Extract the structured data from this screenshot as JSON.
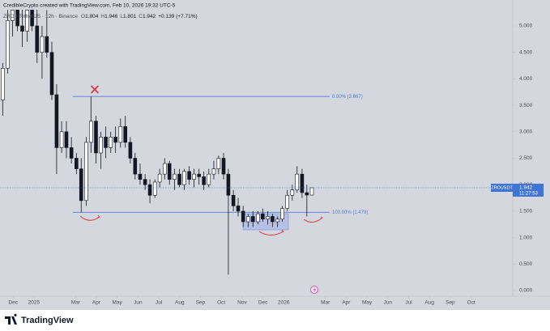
{
  "chart_data": {
    "type": "candlestick",
    "title": "CredibleCrypto created with TradingView.com, Feb 10, 2026 19:32 UTC-5",
    "symbol_info": "ZRO / TetherUS · 12h · Binance",
    "ohlc_letters": [
      "O",
      "H",
      "L",
      "C"
    ],
    "change_label": "+0.139 (+7.71%)",
    "color": "#131722",
    "x": [
      -0.5,
      -0.26,
      -0.03,
      0.21,
      0.44,
      0.68,
      0.91,
      1.15,
      1.39,
      1.62,
      1.86,
      2.09,
      2.33,
      2.56,
      2.8,
      3.04,
      3.27,
      3.51,
      3.74,
      3.98,
      4.21,
      4.45,
      4.69,
      4.92,
      5.16,
      5.39,
      5.63,
      5.86,
      6.1,
      6.34,
      6.57,
      6.81,
      7.04,
      7.28,
      7.51,
      7.75,
      7.99,
      8.22,
      8.46,
      8.69,
      8.93,
      9.16,
      9.4,
      9.64,
      9.87,
      10.11,
      10.34,
      10.58,
      10.81,
      11.05,
      11.29,
      11.52,
      11.76,
      11.99,
      12.23,
      12.46,
      12.7,
      12.93,
      13.17,
      13.41,
      13.64,
      13.88,
      14.11,
      14.35
    ],
    "open": [
      3.6,
      4.2,
      5.1,
      5.3,
      5.0,
      4.9,
      5.3,
      5.0,
      4.5,
      4.8,
      4.5,
      3.7,
      2.7,
      3.0,
      2.7,
      2.5,
      2.3,
      1.7,
      2.8,
      3.2,
      2.6,
      2.9,
      2.7,
      2.9,
      2.8,
      3.1,
      2.8,
      2.5,
      2.2,
      2.1,
      2.0,
      1.8,
      2.05,
      2.2,
      2.4,
      2.1,
      2.2,
      2.0,
      2.25,
      2.1,
      2.2,
      2.15,
      2.0,
      2.2,
      2.3,
      2.5,
      2.2,
      1.8,
      1.6,
      1.5,
      1.3,
      1.4,
      1.3,
      1.45,
      1.35,
      1.4,
      1.3,
      1.35,
      1.55,
      1.8,
      1.9,
      2.2,
      1.85,
      1.804
    ],
    "high": [
      4.3,
      5.3,
      5.6,
      5.7,
      5.4,
      5.5,
      5.6,
      5.4,
      5.0,
      5.3,
      4.7,
      3.9,
      3.2,
      3.2,
      2.9,
      2.6,
      2.5,
      2.9,
      3.667,
      3.3,
      3.0,
      3.1,
      3.0,
      3.1,
      3.25,
      3.3,
      2.9,
      2.6,
      2.4,
      2.2,
      2.1,
      2.1,
      2.3,
      2.5,
      2.45,
      2.3,
      2.3,
      2.3,
      2.35,
      2.3,
      2.3,
      2.25,
      2.3,
      2.45,
      2.55,
      2.6,
      2.3,
      1.9,
      1.75,
      1.6,
      1.45,
      1.5,
      1.5,
      1.55,
      1.5,
      1.45,
      1.4,
      1.6,
      1.9,
      2.0,
      2.35,
      2.3,
      2.0,
      1.946
    ],
    "low": [
      3.3,
      4.1,
      4.8,
      4.9,
      4.6,
      4.7,
      4.9,
      4.3,
      4.0,
      4.4,
      3.6,
      2.2,
      2.6,
      2.5,
      2.4,
      2.2,
      1.479,
      1.6,
      2.6,
      2.4,
      2.3,
      2.5,
      2.6,
      2.6,
      2.7,
      2.7,
      2.4,
      2.1,
      2.0,
      1.9,
      1.65,
      1.75,
      1.95,
      2.1,
      2.0,
      1.9,
      1.95,
      1.9,
      2.0,
      1.95,
      2.0,
      1.9,
      1.95,
      2.1,
      2.2,
      2.1,
      0.3,
      1.5,
      1.4,
      1.2,
      1.2,
      1.2,
      1.25,
      1.3,
      1.25,
      1.2,
      1.2,
      1.3,
      1.5,
      1.7,
      1.85,
      1.75,
      1.4,
      1.801
    ],
    "close": [
      4.2,
      5.1,
      5.3,
      5.0,
      4.9,
      5.3,
      5.0,
      4.5,
      4.8,
      4.5,
      3.7,
      2.7,
      3.0,
      2.7,
      2.5,
      2.3,
      1.7,
      2.8,
      3.2,
      2.6,
      2.9,
      2.7,
      2.9,
      2.8,
      3.1,
      2.8,
      2.5,
      2.2,
      2.1,
      2.0,
      1.8,
      2.05,
      2.2,
      2.4,
      2.1,
      2.2,
      2.0,
      2.25,
      2.1,
      2.2,
      2.15,
      2.0,
      2.2,
      2.3,
      2.5,
      2.2,
      1.8,
      1.6,
      1.5,
      1.3,
      1.4,
      1.3,
      1.45,
      1.35,
      1.4,
      1.3,
      1.35,
      1.55,
      1.8,
      1.9,
      2.2,
      1.85,
      1.804,
      1.942
    ],
    "xlim": [
      -0.63,
      24.0
    ],
    "ylim": [
      -0.107,
      5.306
    ],
    "xticks": [
      {
        "value": 0,
        "label": "Dec"
      },
      {
        "value": 1,
        "label": "2025"
      },
      {
        "value": 3,
        "label": "Mar"
      },
      {
        "value": 4,
        "label": "Apr"
      },
      {
        "value": 5,
        "label": "May"
      },
      {
        "value": 6,
        "label": "Jun"
      },
      {
        "value": 7,
        "label": "Jul"
      },
      {
        "value": 8,
        "label": "Aug"
      },
      {
        "value": 9,
        "label": "Sep"
      },
      {
        "value": 10,
        "label": "Oct"
      },
      {
        "value": 11,
        "label": "Nov"
      },
      {
        "value": 12,
        "label": "Dec"
      },
      {
        "value": 13,
        "label": "2026"
      },
      {
        "value": 15,
        "label": "Mar"
      },
      {
        "value": 16,
        "label": "Apr"
      },
      {
        "value": 17,
        "label": "May"
      },
      {
        "value": 18,
        "label": "Jun"
      },
      {
        "value": 19,
        "label": "Jul"
      },
      {
        "value": 20,
        "label": "Aug"
      },
      {
        "value": 21,
        "label": "Sep"
      },
      {
        "value": 22,
        "label": "Oct"
      }
    ],
    "yticks": [
      {
        "value": 0,
        "label": "0.000"
      },
      {
        "value": 0.5,
        "label": "0.500"
      },
      {
        "value": 1,
        "label": "1.000"
      },
      {
        "value": 1.5,
        "label": "1.500"
      },
      {
        "value": 2,
        "label": "2.000"
      },
      {
        "value": 2.5,
        "label": "2.500"
      },
      {
        "value": 3,
        "label": "3.000"
      },
      {
        "value": 3.5,
        "label": "3.500"
      },
      {
        "value": 4,
        "label": "4.000"
      },
      {
        "value": 4.5,
        "label": "4.500"
      },
      {
        "value": 5,
        "label": "5.000"
      }
    ],
    "levels": [
      {
        "value": 3.667,
        "label": "0.00% (3.667)",
        "color": "#4f7be0"
      },
      {
        "value": 1.479,
        "label": "100.00% (1.479)",
        "color": "#4f7be0"
      }
    ],
    "price_tag": {
      "symbol": "ZROUSDT",
      "countdown": "11:27:53",
      "color": "#3f74d6"
    }
  },
  "footer": {
    "brand": "TradingView"
  }
}
